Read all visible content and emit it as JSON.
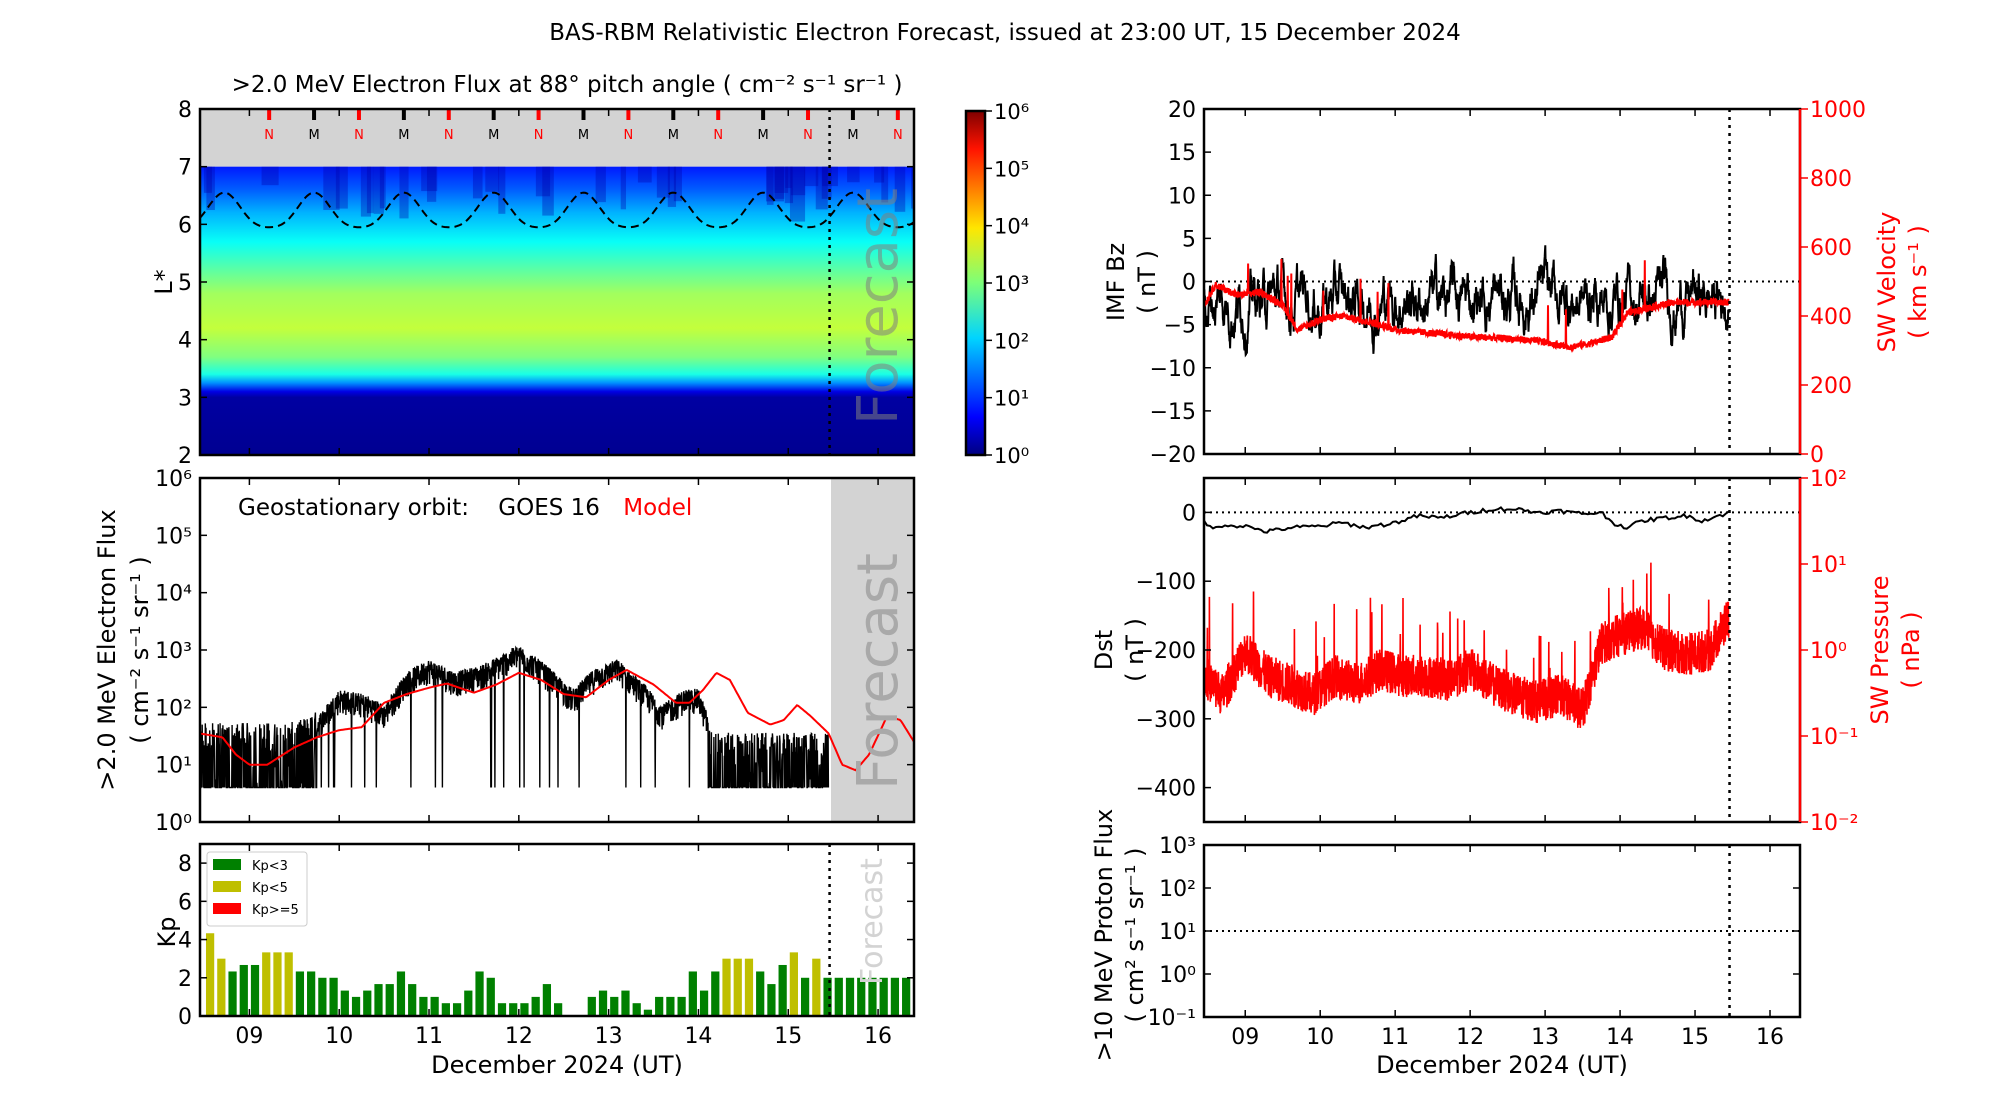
{
  "figure": {
    "title": "BAS-RBM Relativistic Electron Forecast, issued at 23:00 UT, 15 December 2024",
    "forecast_label": "Forecast",
    "xlabel": "December 2024 (UT)",
    "x_ticks": [
      "09",
      "10",
      "11",
      "12",
      "13",
      "14",
      "15",
      "16"
    ],
    "x_range_days": [
      8.45,
      16.4
    ],
    "forecast_start_day": 15.46
  },
  "chart_data": [
    {
      "id": "lstar-spectrogram",
      "type": "heatmap",
      "title": ">2.0 MeV Electron Flux at 88° pitch angle ( cm⁻² s⁻¹ sr⁻¹ )",
      "ylabel": "L*",
      "ylim": [
        2,
        8
      ],
      "yticks": [
        "2",
        "3",
        "4",
        "5",
        "6",
        "7",
        "8"
      ],
      "model_boundary_L": 7,
      "colorbar": {
        "scale": "log",
        "range": [
          1,
          1000000
        ],
        "ticks": [
          "10⁰",
          "10¹",
          "10²",
          "10³",
          "10⁴",
          "10⁵",
          "10⁶"
        ],
        "colormap": "jet"
      },
      "profile_L_log10flux": [
        {
          "L": 2.0,
          "v": 0.1
        },
        {
          "L": 3.0,
          "v": 0.2
        },
        {
          "L": 3.1,
          "v": 0.6
        },
        {
          "L": 3.25,
          "v": 1.6
        },
        {
          "L": 3.4,
          "v": 2.4
        },
        {
          "L": 3.7,
          "v": 3.0
        },
        {
          "L": 4.2,
          "v": 3.4
        },
        {
          "L": 4.8,
          "v": 3.2
        },
        {
          "L": 5.3,
          "v": 2.7
        },
        {
          "L": 5.7,
          "v": 2.3
        },
        {
          "L": 6.2,
          "v": 1.8
        },
        {
          "L": 6.6,
          "v": 1.3
        },
        {
          "L": 7.0,
          "v": 0.9
        }
      ],
      "magnetopause_markers": [
        {
          "day": 9.22,
          "label": "N"
        },
        {
          "day": 9.72,
          "label": "M"
        },
        {
          "day": 10.22,
          "label": "N"
        },
        {
          "day": 10.72,
          "label": "M"
        },
        {
          "day": 11.22,
          "label": "N"
        },
        {
          "day": 11.72,
          "label": "M"
        },
        {
          "day": 12.22,
          "label": "N"
        },
        {
          "day": 12.72,
          "label": "M"
        },
        {
          "day": 13.22,
          "label": "N"
        },
        {
          "day": 13.72,
          "label": "M"
        },
        {
          "day": 14.22,
          "label": "N"
        },
        {
          "day": 14.72,
          "label": "M"
        },
        {
          "day": 15.22,
          "label": "N"
        },
        {
          "day": 15.72,
          "label": "M"
        },
        {
          "day": 16.22,
          "label": "N"
        }
      ],
      "geo_orbit_L": {
        "mean": 6.2,
        "amplitude": 0.3,
        "min_day_phase": 0.22
      }
    },
    {
      "id": "geo-flux",
      "type": "line",
      "ylabel": ">2.0 MeV Electron Flux",
      "ylabel2": "( cm⁻² s⁻¹ sr⁻¹ )",
      "yscale": "log",
      "ylim": [
        1,
        1000000
      ],
      "yticks": [
        "10⁰",
        "10¹",
        "10²",
        "10³",
        "10⁴",
        "10⁵",
        "10⁶"
      ],
      "legend": {
        "prefix": "Geostationary orbit:",
        "observed": "GOES 16",
        "model": "Model"
      },
      "series": [
        {
          "name": "GOES 16",
          "color": "#000000",
          "floor": 4,
          "envelope": [
            [
              8.45,
              30
            ],
            [
              9.45,
              30
            ],
            [
              9.7,
              40
            ],
            [
              10.0,
              150
            ],
            [
              10.3,
              120
            ],
            [
              10.5,
              80
            ],
            [
              10.75,
              300
            ],
            [
              11.0,
              500
            ],
            [
              11.3,
              300
            ],
            [
              11.6,
              400
            ],
            [
              12.0,
              900
            ],
            [
              12.3,
              400
            ],
            [
              12.6,
              150
            ],
            [
              12.85,
              350
            ],
            [
              13.1,
              500
            ],
            [
              13.4,
              180
            ],
            [
              13.6,
              80
            ],
            [
              13.85,
              150
            ],
            [
              14.0,
              150
            ],
            [
              14.2,
              20
            ],
            [
              15.45,
              20
            ]
          ]
        },
        {
          "name": "Model",
          "color": "#ff0000",
          "points": [
            [
              8.45,
              35
            ],
            [
              8.7,
              30
            ],
            [
              8.85,
              15
            ],
            [
              9.0,
              10
            ],
            [
              9.2,
              10
            ],
            [
              9.5,
              20
            ],
            [
              9.75,
              30
            ],
            [
              10.0,
              40
            ],
            [
              10.25,
              45
            ],
            [
              10.5,
              120
            ],
            [
              10.75,
              170
            ],
            [
              11.0,
              220
            ],
            [
              11.2,
              260
            ],
            [
              11.5,
              180
            ],
            [
              11.75,
              250
            ],
            [
              12.0,
              400
            ],
            [
              12.25,
              300
            ],
            [
              12.5,
              170
            ],
            [
              12.75,
              150
            ],
            [
              13.0,
              300
            ],
            [
              13.2,
              450
            ],
            [
              13.5,
              250
            ],
            [
              13.75,
              120
            ],
            [
              13.9,
              120
            ],
            [
              14.05,
              200
            ],
            [
              14.2,
              400
            ],
            [
              14.35,
              300
            ],
            [
              14.55,
              80
            ],
            [
              14.8,
              50
            ],
            [
              14.95,
              60
            ],
            [
              15.1,
              110
            ],
            [
              15.25,
              70
            ],
            [
              15.45,
              35
            ],
            [
              15.6,
              10
            ],
            [
              15.75,
              8
            ],
            [
              15.9,
              15
            ],
            [
              16.1,
              70
            ],
            [
              16.25,
              60
            ],
            [
              16.4,
              25
            ]
          ]
        }
      ]
    },
    {
      "id": "kp-index",
      "type": "bar",
      "ylabel": "Kp",
      "ylim": [
        0,
        9
      ],
      "yticks": [
        "0",
        "2",
        "4",
        "6",
        "8"
      ],
      "bar_width_hours": 3,
      "first_bar_day": 8.5,
      "legend": [
        {
          "label": "Kp<3",
          "color": "#008000"
        },
        {
          "label": "Kp<5",
          "color": "#bfbf00"
        },
        {
          "label": "Kp>=5",
          "color": "#ff0000"
        }
      ],
      "values": [
        4.33,
        3.0,
        2.33,
        2.67,
        2.67,
        3.33,
        3.33,
        3.33,
        2.33,
        2.33,
        2.0,
        2.0,
        1.33,
        1.0,
        1.33,
        1.67,
        1.67,
        2.33,
        1.67,
        1.0,
        1.0,
        0.67,
        0.67,
        1.33,
        2.33,
        2.0,
        0.67,
        0.67,
        0.67,
        1.0,
        1.67,
        0.67,
        null,
        null,
        1.0,
        1.33,
        1.0,
        1.33,
        0.67,
        0.33,
        1.0,
        1.0,
        1.0,
        2.33,
        1.33,
        2.33,
        3.0,
        3.0,
        3.0,
        2.33,
        1.67,
        2.67,
        3.33,
        2.0,
        3.0,
        2.0,
        2.0,
        2.0,
        2.0,
        2.0,
        2.0,
        2.0,
        2.0
      ]
    },
    {
      "id": "imf-bz-sw-velocity",
      "type": "line",
      "ylabel": "IMF Bz",
      "ylabel_units": "( nT )",
      "ylim": [
        -20,
        20
      ],
      "yticks": [
        "−20",
        "−15",
        "−10",
        "−5",
        "0",
        "5",
        "10",
        "15",
        "20"
      ],
      "ylabel_right": "SW Velocity",
      "ylabel_right_units": "( km s⁻¹ )",
      "ylim_right": [
        0,
        1000
      ],
      "yticks_right": [
        "0",
        "200",
        "400",
        "600",
        "800",
        "1000"
      ],
      "series": [
        {
          "name": "IMF Bz",
          "color": "#000000",
          "mean": -2,
          "spread": 4,
          "min": -10.5,
          "max": 6.8
        },
        {
          "name": "SW Velocity",
          "color": "#ff0000",
          "points": [
            [
              8.45,
              430
            ],
            [
              8.6,
              490
            ],
            [
              8.9,
              460
            ],
            [
              9.2,
              470
            ],
            [
              9.5,
              430
            ],
            [
              9.7,
              360
            ],
            [
              10.0,
              390
            ],
            [
              10.3,
              400
            ],
            [
              10.7,
              380
            ],
            [
              11.0,
              360
            ],
            [
              11.5,
              350
            ],
            [
              12.0,
              340
            ],
            [
              12.5,
              335
            ],
            [
              13.0,
              325
            ],
            [
              13.3,
              310
            ],
            [
              13.6,
              320
            ],
            [
              13.9,
              340
            ],
            [
              14.1,
              410
            ],
            [
              14.5,
              430
            ],
            [
              14.75,
              440
            ]
          ]
        }
      ],
      "reference_line": 0
    },
    {
      "id": "dst-sw-pressure",
      "type": "line",
      "ylabel": "Dst",
      "ylabel_units": "( nT )",
      "ylim": [
        -450,
        50
      ],
      "yticks": [
        "−400",
        "−300",
        "−200",
        "−100",
        "0"
      ],
      "ylabel_right": "SW Pressure",
      "ylabel_right_units": "( nPa )",
      "ylim_right": [
        0.01,
        100
      ],
      "yticks_right": [
        "10⁻²",
        "10⁻¹",
        "10⁰",
        "10¹",
        "10²"
      ],
      "series": [
        {
          "name": "Dst",
          "color": "#000000",
          "points": [
            [
              8.45,
              -10
            ],
            [
              8.55,
              -25
            ],
            [
              8.7,
              -18
            ],
            [
              9.0,
              -20
            ],
            [
              9.3,
              -28
            ],
            [
              9.6,
              -22
            ],
            [
              10.0,
              -20
            ],
            [
              10.3,
              -15
            ],
            [
              10.6,
              -22
            ],
            [
              11.0,
              -15
            ],
            [
              11.3,
              -5
            ],
            [
              11.6,
              -8
            ],
            [
              12.0,
              0
            ],
            [
              12.3,
              5
            ],
            [
              12.6,
              5
            ],
            [
              12.9,
              0
            ],
            [
              13.2,
              2
            ],
            [
              13.5,
              -2
            ],
            [
              13.75,
              0
            ],
            [
              13.9,
              -15
            ],
            [
              14.1,
              -22
            ],
            [
              14.3,
              -12
            ],
            [
              14.6,
              -8
            ],
            [
              14.9,
              -5
            ],
            [
              15.1,
              -12
            ],
            [
              15.46,
              0
            ]
          ]
        },
        {
          "name": "SW Pressure",
          "color": "#ff0000",
          "points": [
            [
              8.45,
              0.5
            ],
            [
              8.7,
              0.3
            ],
            [
              9.0,
              1.0
            ],
            [
              9.3,
              0.5
            ],
            [
              9.6,
              0.4
            ],
            [
              9.9,
              0.3
            ],
            [
              10.2,
              0.5
            ],
            [
              10.5,
              0.4
            ],
            [
              10.8,
              0.6
            ],
            [
              11.1,
              0.5
            ],
            [
              11.4,
              0.5
            ],
            [
              11.7,
              0.45
            ],
            [
              12.0,
              0.6
            ],
            [
              12.3,
              0.4
            ],
            [
              12.6,
              0.3
            ],
            [
              12.9,
              0.25
            ],
            [
              13.2,
              0.3
            ],
            [
              13.5,
              0.2
            ],
            [
              13.75,
              1.2
            ],
            [
              14.0,
              1.5
            ],
            [
              14.3,
              1.8
            ],
            [
              14.6,
              1.0
            ],
            [
              14.9,
              0.9
            ],
            [
              15.2,
              1.0
            ],
            [
              15.46,
              2.5
            ]
          ]
        }
      ],
      "reference_line": 0
    },
    {
      "id": "proton-flux",
      "type": "line",
      "ylabel": ">10 MeV Proton Flux",
      "ylabel_units": "( cm² s⁻¹ sr⁻¹ )",
      "yscale": "log",
      "ylim": [
        0.1,
        1000
      ],
      "yticks": [
        "10⁻¹",
        "10⁰",
        "10¹",
        "10²",
        "10³"
      ],
      "threshold": 10,
      "series": []
    }
  ]
}
